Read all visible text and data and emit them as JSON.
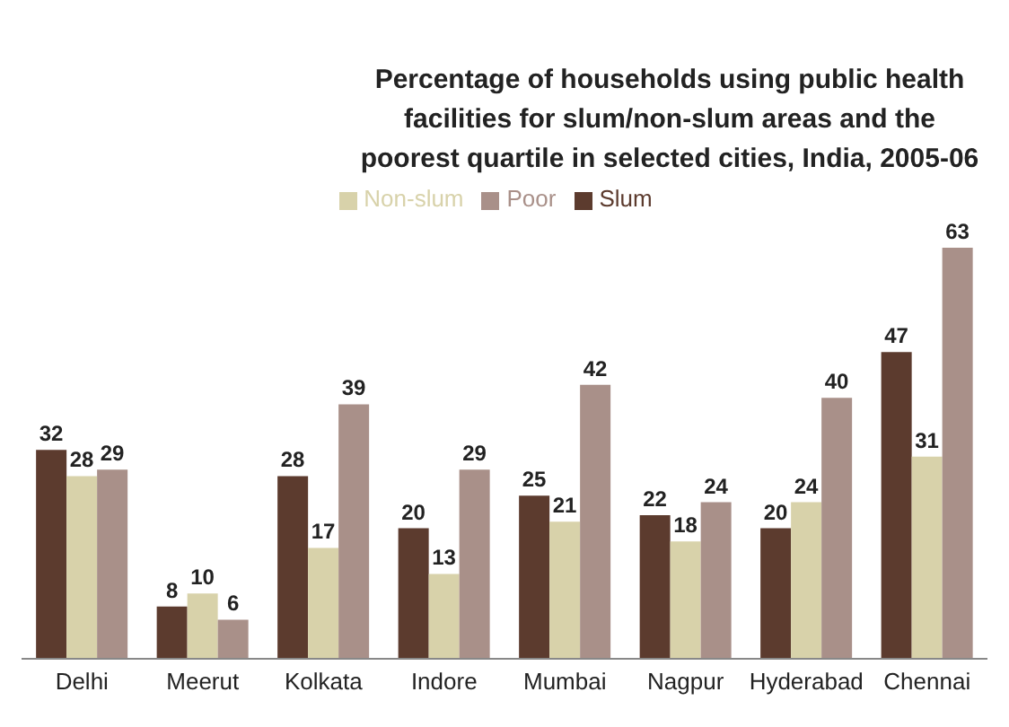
{
  "chart_data": {
    "type": "bar",
    "title": "Percentage of households using public health facilities for slum/non-slum areas and the poorest quartile in selected cities, India, 2005-06",
    "categories": [
      "Delhi",
      "Meerut",
      "Kolkata",
      "Indore",
      "Mumbai",
      "Nagpur",
      "Hyderabad",
      "Chennai"
    ],
    "series": [
      {
        "name": "Slum",
        "color": "#5c3b2e",
        "values": [
          32,
          8,
          28,
          20,
          25,
          22,
          20,
          47
        ]
      },
      {
        "name": "Non-slum",
        "color": "#d8d2aa",
        "values": [
          28,
          10,
          17,
          13,
          21,
          18,
          24,
          31
        ]
      },
      {
        "name": "Poor",
        "color": "#a99089",
        "values": [
          29,
          6,
          39,
          29,
          42,
          24,
          40,
          63
        ]
      }
    ],
    "data_labels": true,
    "legend": "top",
    "grid": false
  }
}
